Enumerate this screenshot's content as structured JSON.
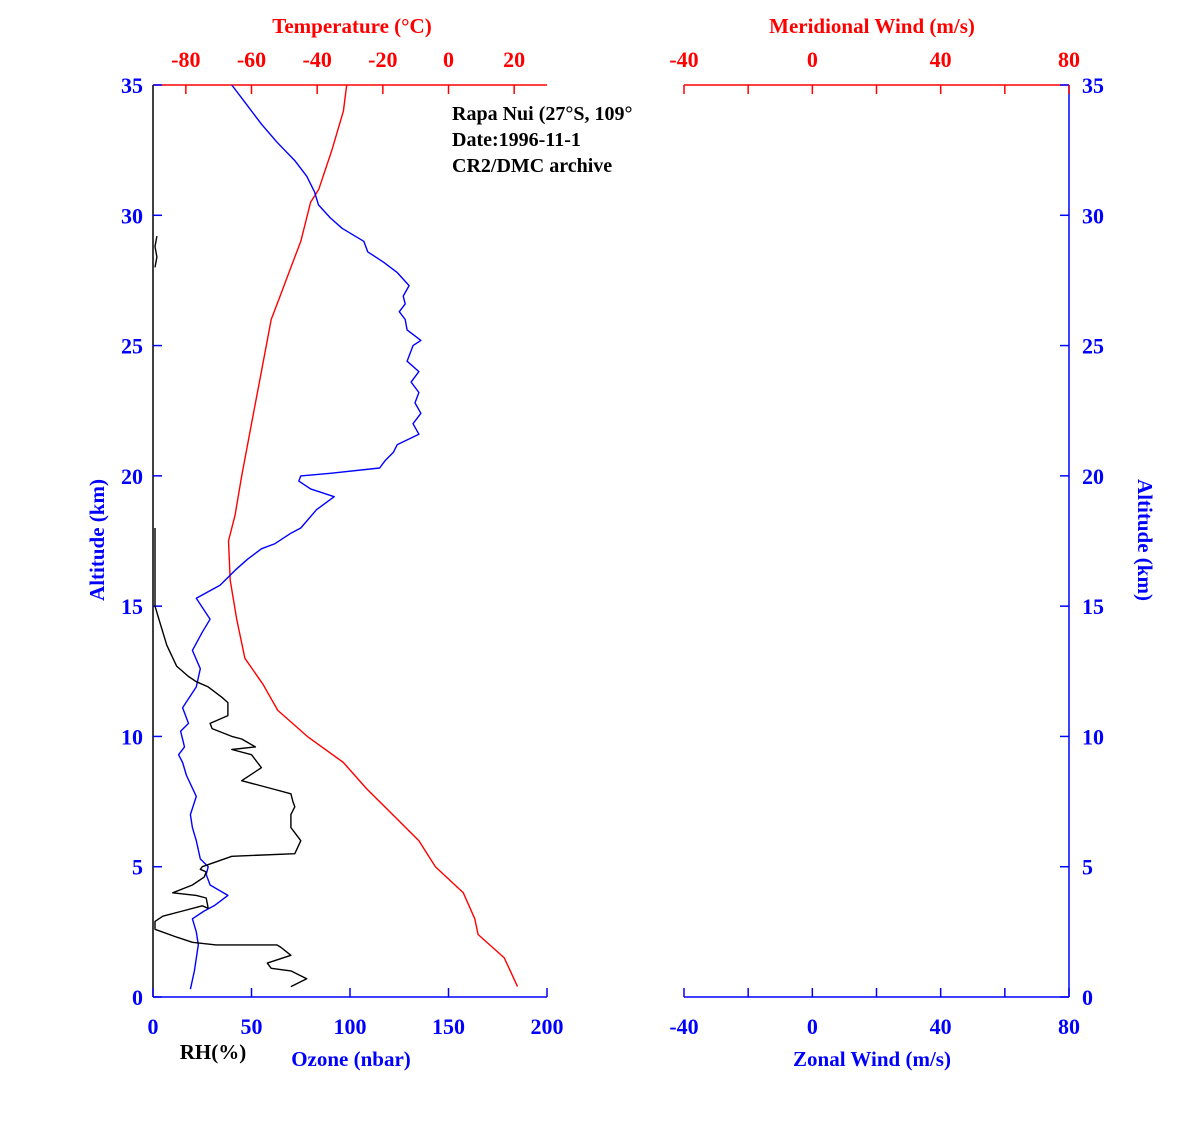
{
  "colors": {
    "blue": "#0000ff",
    "red": "#ff0000",
    "black": "#000000"
  },
  "chart_data": [
    {
      "type": "line",
      "annotation": [
        "Rapa Nui (27°S, 109°",
        "Date:1996-11-1",
        "CR2/DMC archive"
      ],
      "ylabel": "Altitude (km)",
      "ylim": [
        0,
        35
      ],
      "yticks": [
        0,
        5,
        10,
        15,
        20,
        25,
        30,
        35
      ],
      "x_bottom": {
        "label": "Ozone (nbar)",
        "lim": [
          0,
          200
        ],
        "ticks": [
          0,
          50,
          100,
          150,
          200
        ]
      },
      "x_bottom_secondary_label": "RH(%)",
      "x_top": {
        "label": "Temperature (°C)",
        "lim": [
          -90,
          30
        ],
        "ticks": [
          -80,
          -60,
          -40,
          -20,
          0,
          20
        ]
      },
      "series": [
        {
          "name": "Temperature (°C)",
          "axis": "top",
          "color": "red",
          "x": [
            21.0,
            17.0,
            9.0,
            8.0,
            4.5,
            -4.0,
            -9.0,
            -17.0,
            -25.0,
            -32.0,
            -43.0,
            -52.0,
            -56.5,
            -62.0,
            -64.5,
            -66.5,
            -67.0,
            -65.0,
            -63.0,
            -60.0,
            -57.0,
            -54.0,
            -51.0,
            -48.0,
            -45.0,
            -42.0,
            -39.5,
            -35.5,
            -32.0,
            -31.0
          ],
          "y": [
            0.4,
            1.5,
            2.4,
            3.0,
            4.0,
            5.0,
            6.0,
            7.0,
            8.0,
            9.0,
            10.0,
            11.0,
            12.0,
            13.0,
            14.5,
            16.0,
            17.5,
            18.5,
            20.0,
            22.0,
            24.0,
            26.0,
            27.0,
            28.0,
            29.0,
            30.5,
            31.0,
            32.5,
            34.0,
            35.0
          ]
        },
        {
          "name": "Ozone (nbar)",
          "axis": "bottom",
          "color": "blue",
          "x": [
            19,
            21,
            23,
            22,
            20,
            26,
            31,
            38,
            29,
            27,
            28,
            24,
            22,
            20,
            19,
            22,
            17,
            15,
            13,
            16,
            14,
            18,
            15,
            22,
            24,
            20,
            25,
            29,
            22,
            34,
            38,
            42,
            48,
            55,
            62,
            70,
            75,
            83,
            92,
            80,
            74,
            75,
            90,
            115,
            118,
            122,
            124,
            135,
            132,
            136,
            133,
            135,
            131,
            135,
            129,
            131,
            132,
            136,
            129,
            128,
            125,
            128,
            127,
            130,
            124,
            117,
            109,
            107,
            96,
            90,
            84,
            82,
            78,
            72,
            63,
            55,
            48,
            40
          ],
          "y": [
            0.3,
            1.0,
            2.0,
            2.5,
            3.0,
            3.3,
            3.5,
            3.9,
            4.3,
            4.7,
            5.0,
            5.3,
            6.0,
            6.5,
            7.0,
            7.7,
            8.5,
            9.0,
            9.3,
            9.6,
            10.2,
            10.5,
            11.1,
            11.9,
            12.6,
            13.3,
            14.0,
            14.5,
            15.3,
            15.8,
            16.1,
            16.4,
            16.8,
            17.2,
            17.4,
            17.8,
            18.0,
            18.7,
            19.2,
            19.5,
            19.8,
            20.0,
            20.1,
            20.3,
            20.6,
            20.9,
            21.2,
            21.6,
            22.0,
            22.4,
            22.8,
            23.2,
            23.6,
            24.0,
            24.4,
            24.8,
            25.0,
            25.2,
            25.6,
            26.0,
            26.3,
            26.6,
            26.9,
            27.3,
            27.8,
            28.2,
            28.6,
            29.0,
            29.5,
            29.9,
            30.4,
            30.9,
            31.5,
            32.1,
            32.8,
            33.5,
            34.2,
            35.0
          ]
        },
        {
          "name": "RH(%)",
          "axis": "bottom",
          "color": "black",
          "x": [
            70,
            78,
            70,
            60,
            58,
            70,
            65,
            63,
            32,
            20,
            12,
            1,
            1,
            5,
            15,
            25,
            28,
            27,
            22,
            10,
            20,
            26,
            27,
            24,
            25,
            40,
            72,
            75,
            70,
            70,
            72,
            71,
            70,
            60,
            45,
            55,
            50,
            40,
            52,
            45,
            40,
            30,
            29,
            38,
            38,
            35,
            28,
            22,
            18,
            12,
            7,
            3,
            1,
            1,
            1,
            1,
            1,
            1,
            2,
            1,
            2
          ],
          "y": [
            0.4,
            0.7,
            1.0,
            1.1,
            1.3,
            1.6,
            1.9,
            2.0,
            2.0,
            2.1,
            2.3,
            2.6,
            2.9,
            3.1,
            3.3,
            3.5,
            3.4,
            3.8,
            3.9,
            4.0,
            4.3,
            4.6,
            4.8,
            4.9,
            5.0,
            5.4,
            5.5,
            6.0,
            6.5,
            7.0,
            7.3,
            7.5,
            7.8,
            8.0,
            8.3,
            8.8,
            9.3,
            9.5,
            9.6,
            9.9,
            10.0,
            10.3,
            10.5,
            10.8,
            11.3,
            11.5,
            11.9,
            12.1,
            12.3,
            12.7,
            13.5,
            14.5,
            15.0,
            16.0,
            17.0,
            17.8,
            18.0,
            28.0,
            28.4,
            28.8,
            29.2
          ]
        }
      ]
    },
    {
      "type": "line",
      "ylabel": "Altitude (km)",
      "ylim": [
        0,
        35
      ],
      "yticks": [
        0,
        5,
        10,
        15,
        20,
        25,
        30,
        35
      ],
      "x_bottom": {
        "label": "Zonal Wind (m/s)",
        "lim": [
          -40,
          80
        ],
        "ticks": [
          -40,
          0,
          40,
          80
        ]
      },
      "x_top": {
        "label": "Meridional Wind (m/s)",
        "lim": [
          -40,
          80
        ],
        "ticks": [
          -40,
          0,
          40,
          80
        ]
      },
      "series": []
    }
  ]
}
